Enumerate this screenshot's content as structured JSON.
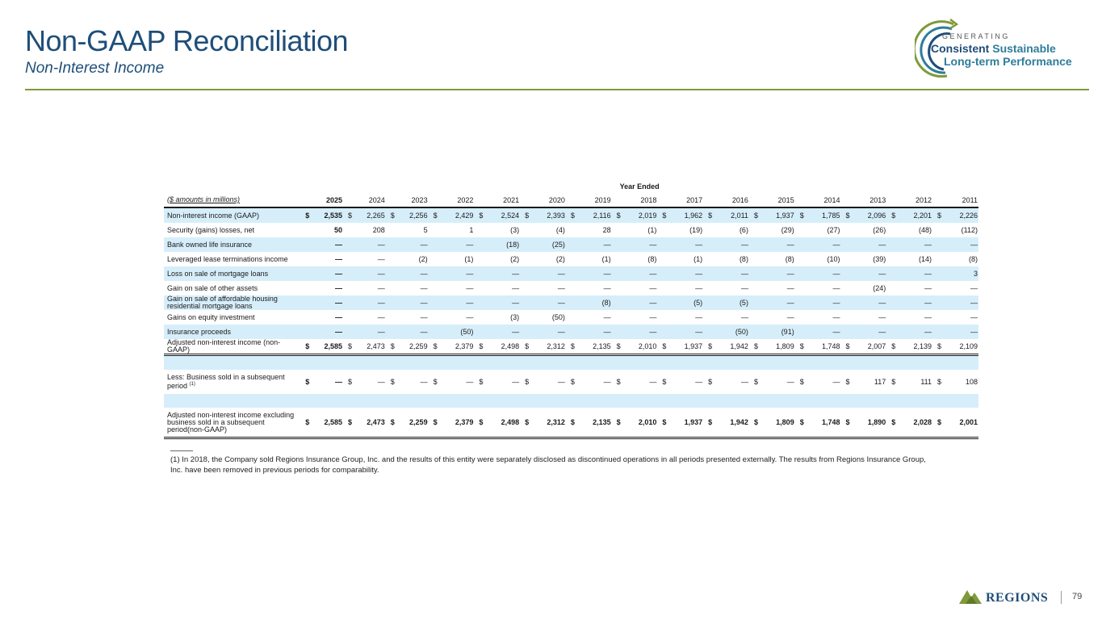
{
  "header": {
    "title": "Non-GAAP Reconciliation",
    "subtitle": "Non-Interest Income"
  },
  "logo": {
    "line0": "GENERATING",
    "line1a": "Consistent",
    "line1b": "Sustainable",
    "line2": "Long-term Performance"
  },
  "table": {
    "caption": "Year Ended",
    "units_label": "($ amounts in millions)",
    "years": [
      "2025",
      "2024",
      "2023",
      "2022",
      "2021",
      "2020",
      "2019",
      "2018",
      "2017",
      "2016",
      "2015",
      "2014",
      "2013",
      "2012",
      "2011"
    ],
    "rows": [
      {
        "label": "Non-interest income (GAAP)",
        "values": [
          "2,535",
          "2,265",
          "2,256",
          "2,429",
          "2,524",
          "2,393",
          "2,116",
          "2,019",
          "1,962",
          "2,011",
          "1,937",
          "1,785",
          "2,096",
          "2,201",
          "2,226"
        ]
      },
      {
        "label": "Security (gains) losses, net",
        "values": [
          "50",
          "208",
          "5",
          "1",
          "(3)",
          "(4)",
          "28",
          "(1)",
          "(19)",
          "(6)",
          "(29)",
          "(27)",
          "(26)",
          "(48)",
          "(112)"
        ]
      },
      {
        "label": "Bank owned life insurance",
        "values": [
          "—",
          "—",
          "—",
          "—",
          "(18)",
          "(25)",
          "—",
          "—",
          "—",
          "—",
          "—",
          "—",
          "—",
          "—",
          "—"
        ]
      },
      {
        "label": "Leveraged lease terminations income",
        "values": [
          "—",
          "—",
          "(2)",
          "(1)",
          "(2)",
          "(2)",
          "(1)",
          "(8)",
          "(1)",
          "(8)",
          "(8)",
          "(10)",
          "(39)",
          "(14)",
          "(8)"
        ]
      },
      {
        "label": "Loss on sale of mortgage loans",
        "values": [
          "—",
          "—",
          "—",
          "—",
          "—",
          "—",
          "—",
          "—",
          "—",
          "—",
          "—",
          "—",
          "—",
          "—",
          "3"
        ]
      },
      {
        "label": "Gain on sale of other assets",
        "values": [
          "—",
          "—",
          "—",
          "—",
          "—",
          "—",
          "—",
          "—",
          "—",
          "—",
          "—",
          "—",
          "(24)",
          "—",
          "—"
        ]
      },
      {
        "label": "Gain on sale of affordable housing residential mortgage loans",
        "values": [
          "—",
          "—",
          "—",
          "—",
          "—",
          "—",
          "(8)",
          "—",
          "(5)",
          "(5)",
          "—",
          "—",
          "—",
          "—",
          "—"
        ]
      },
      {
        "label": "Gains on equity investment",
        "values": [
          "—",
          "—",
          "—",
          "—",
          "(3)",
          "(50)",
          "—",
          "—",
          "—",
          "—",
          "—",
          "—",
          "—",
          "—",
          "—"
        ]
      },
      {
        "label": "Insurance proceeds",
        "values": [
          "—",
          "—",
          "—",
          "(50)",
          "—",
          "—",
          "—",
          "—",
          "—",
          "(50)",
          "(91)",
          "—",
          "—",
          "—",
          "—"
        ]
      },
      {
        "label": "Adjusted non-interest income (non-GAAP)",
        "values": [
          "2,585",
          "2,473",
          "2,259",
          "2,379",
          "2,498",
          "2,312",
          "2,135",
          "2,010",
          "1,937",
          "1,942",
          "1,809",
          "1,748",
          "2,007",
          "2,139",
          "2,109"
        ]
      },
      {
        "label": "Less: Business sold in a subsequent period",
        "note": "(1)",
        "values": [
          "—",
          "—",
          "—",
          "—",
          "—",
          "—",
          "—",
          "—",
          "—",
          "—",
          "—",
          "—",
          "117",
          "111",
          "108"
        ]
      },
      {
        "label": "Adjusted non-interest income excluding business sold in a subsequent period(non-GAAP)",
        "values": [
          "2,585",
          "2,473",
          "2,259",
          "2,379",
          "2,498",
          "2,312",
          "2,135",
          "2,010",
          "1,937",
          "1,942",
          "1,809",
          "1,748",
          "1,890",
          "2,028",
          "2,001"
        ]
      }
    ]
  },
  "footnote": "(1) In 2018, the Company sold Regions Insurance Group, Inc. and the results of this entity were separately disclosed as discontinued operations in all periods presented externally. The results from Regions Insurance Group, Inc. have been removed in previous periods for comparability.",
  "footer": {
    "brand": "REGIONS",
    "page_number": "79"
  }
}
